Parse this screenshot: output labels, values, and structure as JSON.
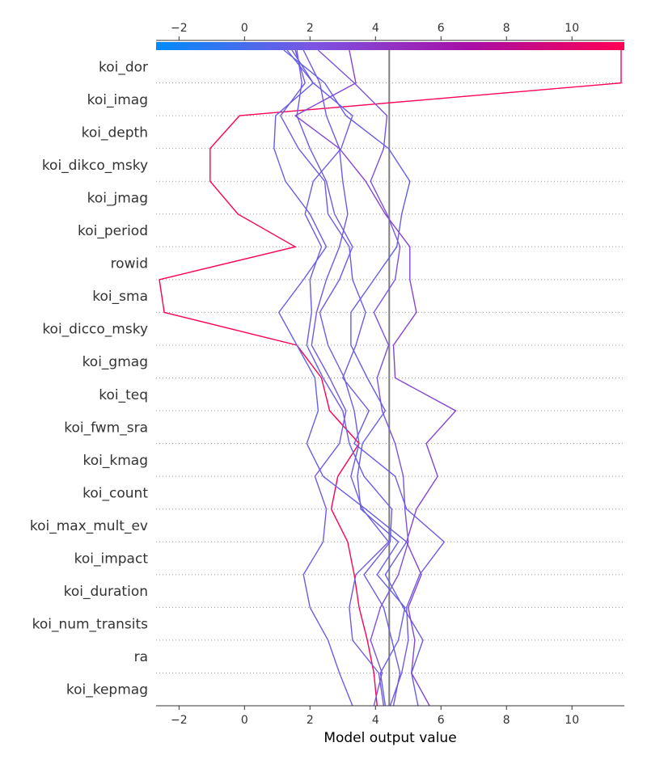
{
  "chart_data": {
    "type": "line",
    "subtype": "shap-decision-plot",
    "xlabel": "Model output value",
    "xlim": [
      -2.7,
      11.6
    ],
    "xticks": [
      -2,
      0,
      2,
      4,
      6,
      8,
      10
    ],
    "xtick_labels": [
      "−2",
      "0",
      "2",
      "4",
      "6",
      "8",
      "10"
    ],
    "base_value": 4.42,
    "features": [
      "koi_dor",
      "koi_imag",
      "koi_depth",
      "koi_dikco_msky",
      "koi_jmag",
      "koi_period",
      "rowid",
      "koi_sma",
      "koi_dicco_msky",
      "koi_gmag",
      "koi_teq",
      "koi_fwm_sra",
      "koi_kmag",
      "koi_count",
      "koi_max_mult_ev",
      "koi_impact",
      "koi_duration",
      "koi_num_transits",
      "ra",
      "koi_kepmag"
    ],
    "colorbar": {
      "range": [
        -2.7,
        11.6
      ],
      "stops": [
        "#008bfb",
        "#7b55e2",
        "#a70fa6",
        "#ff0052"
      ]
    },
    "grid": "dotted-horizontal",
    "series": [
      {
        "values": [
          4.05,
          3.95,
          3.75,
          3.5,
          3.35,
          3.15,
          2.65,
          2.85,
          3.5,
          2.6,
          2.35,
          1.6,
          -2.45,
          -2.6,
          1.55,
          -0.2,
          -1.05,
          -1.05,
          -0.15,
          11.5,
          11.5
        ]
      },
      {
        "values": [
          4.25,
          4.1,
          3.3,
          3.2,
          3.4,
          4.4,
          3.6,
          3.25,
          3.5,
          3.35,
          3.05,
          2.55,
          2.3,
          2.9,
          3.3,
          2.75,
          2.5,
          2.0,
          1.6,
          1.75,
          1.6
        ]
      },
      {
        "values": [
          5.3,
          5.1,
          5.45,
          4.85,
          4.3,
          4.95,
          3.7,
          2.4,
          1.9,
          2.25,
          2.15,
          1.6,
          1.05,
          1.8,
          2.5,
          2.0,
          1.25,
          0.9,
          0.95,
          2.1,
          1.3
        ]
      },
      {
        "values": [
          3.3,
          2.9,
          2.55,
          2.0,
          1.8,
          2.4,
          2.5,
          2.15,
          2.9,
          3.1,
          2.6,
          2.05,
          2.2,
          2.5,
          2.9,
          3.15,
          3.0,
          2.9,
          2.5,
          2.3,
          1.8
        ]
      },
      {
        "values": [
          5.65,
          5.1,
          5.2,
          5.0,
          5.4,
          4.95,
          5.25,
          5.9,
          5.55,
          6.45,
          4.6,
          4.55,
          5.25,
          5.05,
          5.05,
          4.3,
          3.7,
          2.9,
          1.55,
          3.4,
          3.2
        ]
      },
      {
        "values": [
          4.55,
          4.75,
          4.5,
          4.25,
          3.65,
          4.45,
          4.5,
          3.65,
          3.2,
          3.0,
          2.4,
          1.9,
          2.05,
          2.0,
          2.35,
          1.85,
          2.1,
          2.95,
          3.3,
          2.1,
          1.45
        ]
      },
      {
        "values": [
          3.95,
          4.2,
          3.85,
          4.15,
          4.7,
          5.0,
          4.9,
          4.85,
          4.6,
          4.2,
          4.05,
          4.4,
          3.95,
          4.6,
          4.75,
          4.35,
          3.85,
          4.25,
          4.35,
          3.35,
          2.25
        ]
      },
      {
        "values": [
          4.45,
          4.8,
          5.0,
          4.95,
          5.35,
          6.1,
          4.95,
          4.6,
          3.35,
          3.8,
          3.0,
          3.4,
          3.7,
          3.3,
          3.2,
          2.55,
          2.45,
          1.65,
          1.1,
          1.85,
          1.55
        ]
      },
      {
        "values": [
          4.3,
          4.15,
          4.7,
          4.9,
          4.05,
          4.7,
          3.55,
          3.45,
          3.6,
          4.3,
          3.75,
          3.25,
          3.25,
          3.95,
          4.65,
          4.8,
          5.05,
          4.4,
          3.1,
          2.45,
          1.2
        ]
      }
    ]
  }
}
